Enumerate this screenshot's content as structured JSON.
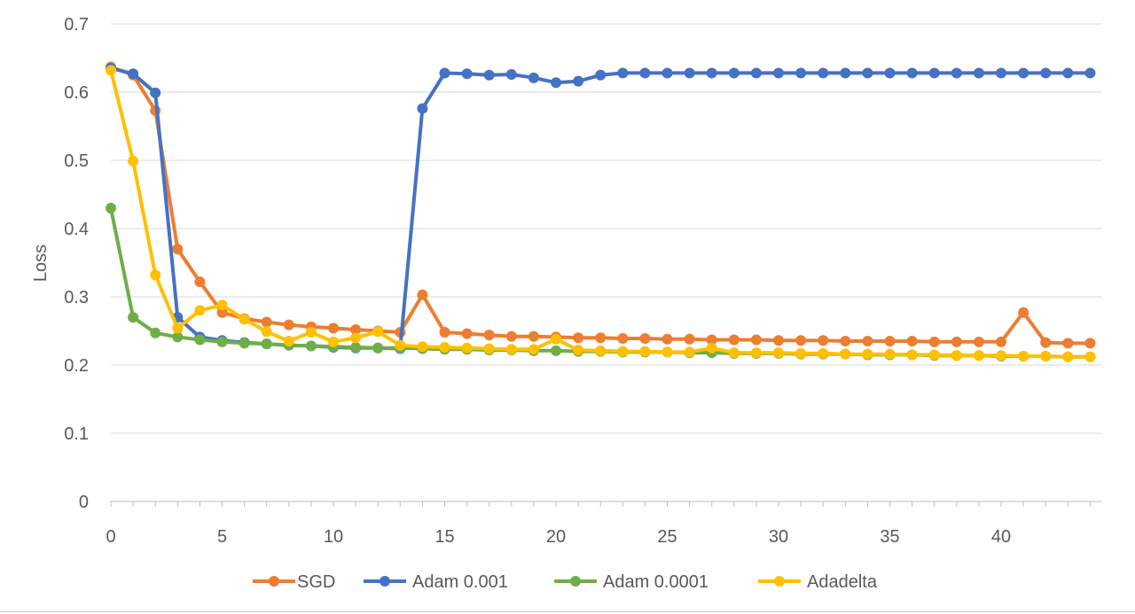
{
  "chart_data": {
    "type": "line",
    "title": "",
    "xlabel": "",
    "ylabel": "Loss",
    "xlim": [
      0,
      44.5
    ],
    "ylim": [
      0,
      0.7
    ],
    "x_ticks": [
      0,
      5,
      10,
      15,
      20,
      25,
      30,
      35,
      40
    ],
    "y_ticks": [
      0,
      0.1,
      0.2,
      0.3,
      0.4,
      0.5,
      0.6,
      0.7
    ],
    "x_tick_labels": [
      "0",
      "5",
      "10",
      "15",
      "20",
      "25",
      "30",
      "35",
      "40"
    ],
    "y_tick_labels": [
      "0",
      "0.1",
      "0.2",
      "0.3",
      "0.4",
      "0.5",
      "0.6",
      "0.7"
    ],
    "grid": "horizontal",
    "legend": "bottom",
    "series": [
      {
        "name": "SGD",
        "color": "#ED7D31",
        "x": [
          0,
          1,
          2,
          3,
          4,
          5,
          6,
          7,
          8,
          9,
          10,
          11,
          12,
          13,
          14,
          15,
          16,
          17,
          18,
          19,
          20,
          21,
          22,
          23,
          24,
          25,
          26,
          27,
          28,
          29,
          30,
          31,
          32,
          33,
          34,
          35,
          36,
          37,
          38,
          39,
          40,
          41,
          42,
          43,
          44
        ],
        "values": [
          0.637,
          0.625,
          0.573,
          0.37,
          0.322,
          0.277,
          0.268,
          0.263,
          0.259,
          0.256,
          0.254,
          0.252,
          0.25,
          0.248,
          0.303,
          0.248,
          0.246,
          0.244,
          0.242,
          0.242,
          0.241,
          0.24,
          0.24,
          0.239,
          0.239,
          0.238,
          0.238,
          0.237,
          0.237,
          0.237,
          0.236,
          0.236,
          0.236,
          0.235,
          0.235,
          0.235,
          0.235,
          0.234,
          0.234,
          0.234,
          0.234,
          0.277,
          0.233,
          0.232,
          0.232
        ]
      },
      {
        "name": "Adam 0.001",
        "color": "#4472C4",
        "x": [
          0,
          1,
          2,
          3,
          4,
          5,
          6,
          7,
          8,
          9,
          10,
          11,
          12,
          13,
          14,
          15,
          16,
          17,
          18,
          19,
          20,
          21,
          22,
          23,
          24,
          25,
          26,
          27,
          28,
          29,
          30,
          31,
          32,
          33,
          34,
          35,
          36,
          37,
          38,
          39,
          40,
          41,
          42,
          43,
          44
        ],
        "values": [
          0.635,
          0.627,
          0.599,
          0.27,
          0.241,
          0.236,
          0.233,
          0.231,
          0.229,
          0.228,
          0.226,
          0.225,
          0.225,
          0.224,
          0.576,
          0.628,
          0.627,
          0.625,
          0.626,
          0.621,
          0.614,
          0.616,
          0.625,
          0.628,
          0.628,
          0.628,
          0.628,
          0.628,
          0.628,
          0.628,
          0.628,
          0.628,
          0.628,
          0.628,
          0.628,
          0.628,
          0.628,
          0.628,
          0.628,
          0.628,
          0.628,
          0.628,
          0.628,
          0.628,
          0.628
        ]
      },
      {
        "name": "Adam 0.0001",
        "color": "#70AD47",
        "x": [
          0,
          1,
          2,
          3,
          4,
          5,
          6,
          7,
          8,
          9,
          10,
          11,
          12,
          13,
          14,
          15,
          16,
          17,
          18,
          19,
          20,
          21,
          22,
          23,
          24,
          25,
          26,
          27,
          28,
          29,
          30,
          31,
          32,
          33,
          34,
          35,
          36,
          37,
          38,
          39,
          40,
          41,
          42,
          43,
          44
        ],
        "values": [
          0.43,
          0.27,
          0.247,
          0.241,
          0.237,
          0.234,
          0.232,
          0.231,
          0.229,
          0.228,
          0.227,
          0.226,
          0.225,
          0.225,
          0.224,
          0.223,
          0.223,
          0.222,
          0.222,
          0.221,
          0.221,
          0.22,
          0.22,
          0.219,
          0.219,
          0.219,
          0.218,
          0.218,
          0.217,
          0.217,
          0.217,
          0.216,
          0.216,
          0.216,
          0.215,
          0.215,
          0.215,
          0.214,
          0.214,
          0.214,
          0.213,
          0.213,
          0.213,
          0.212,
          0.212
        ]
      },
      {
        "name": "Adadelta",
        "color": "#FFC000",
        "x": [
          0,
          1,
          2,
          3,
          4,
          5,
          6,
          7,
          8,
          9,
          10,
          11,
          12,
          13,
          14,
          15,
          16,
          17,
          18,
          19,
          20,
          21,
          22,
          23,
          24,
          25,
          26,
          27,
          28,
          29,
          30,
          31,
          32,
          33,
          34,
          35,
          36,
          37,
          38,
          39,
          40,
          41,
          42,
          43,
          44
        ],
        "values": [
          0.632,
          0.499,
          0.332,
          0.254,
          0.28,
          0.288,
          0.267,
          0.249,
          0.235,
          0.248,
          0.234,
          0.24,
          0.249,
          0.229,
          0.227,
          0.226,
          0.225,
          0.224,
          0.223,
          0.223,
          0.238,
          0.222,
          0.221,
          0.22,
          0.22,
          0.219,
          0.219,
          0.225,
          0.218,
          0.218,
          0.218,
          0.217,
          0.217,
          0.216,
          0.216,
          0.216,
          0.215,
          0.215,
          0.214,
          0.214,
          0.214,
          0.213,
          0.213,
          0.212,
          0.212
        ]
      }
    ]
  }
}
